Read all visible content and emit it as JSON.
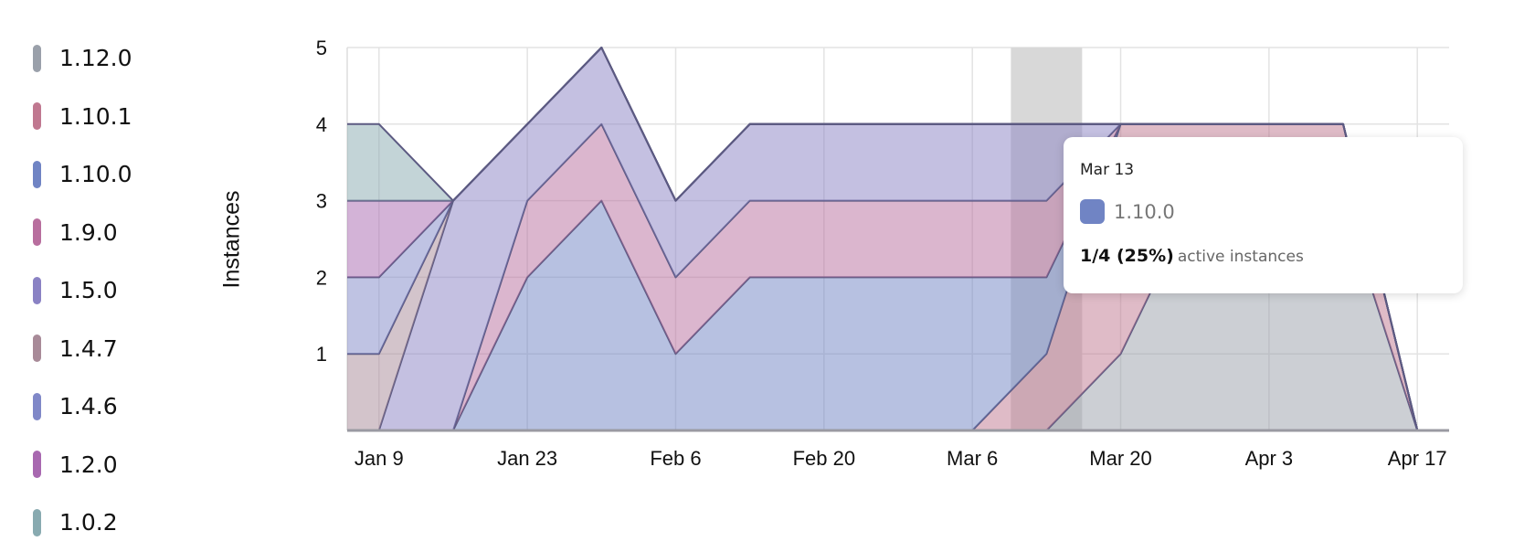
{
  "chart_data": {
    "type": "area",
    "stacked": true,
    "ylabel": "Instances",
    "ylim": [
      0,
      5
    ],
    "yticks": [
      "1",
      "2",
      "3",
      "4",
      "5"
    ],
    "xticks": [
      "Jan 9",
      "Jan 23",
      "Feb 6",
      "Feb 20",
      "Mar 6",
      "Mar 20",
      "Apr 3",
      "Apr 17"
    ],
    "xlim": [
      "Jan 6",
      "Apr 20"
    ],
    "grid": true,
    "legend_position": "left",
    "x": [
      "Jan 6",
      "Jan 9",
      "Jan 16",
      "Jan 23",
      "Jan 30",
      "Feb 6",
      "Feb 13",
      "Feb 20",
      "Feb 27",
      "Mar 6",
      "Mar 13",
      "Mar 20",
      "Mar 27",
      "Apr 3",
      "Apr 10",
      "Apr 17",
      "Apr 20"
    ],
    "series": [
      {
        "name": "1.12.0",
        "color": "#9aa0aa",
        "values": [
          0,
          0,
          0,
          0,
          0,
          0,
          0,
          0,
          0,
          0,
          0,
          1,
          3,
          3,
          3,
          0,
          0
        ]
      },
      {
        "name": "1.10.1",
        "color": "#c07890",
        "values": [
          0,
          0,
          0,
          0,
          0,
          0,
          0,
          0,
          0,
          0,
          1,
          3,
          1,
          1,
          1,
          0,
          0
        ]
      },
      {
        "name": "1.10.0",
        "color": "#7084c4",
        "values": [
          0,
          0,
          0,
          2,
          3,
          1,
          2,
          2,
          2,
          2,
          1,
          0,
          0,
          0,
          0,
          0,
          0
        ]
      },
      {
        "name": "1.9.0",
        "color": "#b86e9e",
        "values": [
          0,
          0,
          0,
          1,
          1,
          1,
          1,
          1,
          1,
          1,
          1,
          0,
          0,
          0,
          0,
          0,
          0
        ]
      },
      {
        "name": "1.5.0",
        "color": "#8a82c4",
        "values": [
          0,
          0,
          3,
          1,
          1,
          1,
          1,
          1,
          1,
          1,
          1,
          0,
          0,
          0,
          0,
          0,
          0
        ]
      },
      {
        "name": "1.4.7",
        "color": "#a88a98",
        "values": [
          1,
          1,
          0,
          0,
          0,
          0,
          0,
          0,
          0,
          0,
          0,
          0,
          0,
          0,
          0,
          0,
          0
        ]
      },
      {
        "name": "1.4.6",
        "color": "#8088c8",
        "values": [
          1,
          1,
          0,
          0,
          0,
          0,
          0,
          0,
          0,
          0,
          0,
          0,
          0,
          0,
          0,
          0,
          0
        ]
      },
      {
        "name": "1.2.0",
        "color": "#a868b0",
        "values": [
          1,
          1,
          0,
          0,
          0,
          0,
          0,
          0,
          0,
          0,
          0,
          0,
          0,
          0,
          0,
          0,
          0
        ]
      },
      {
        "name": "1.0.2",
        "color": "#88aab0",
        "values": [
          1,
          1,
          0,
          0,
          0,
          0,
          0,
          0,
          0,
          0,
          0,
          0,
          0,
          0,
          0,
          0,
          0
        ]
      }
    ],
    "highlight": "Mar 13"
  },
  "legend": [
    "1.12.0",
    "1.10.1",
    "1.10.0",
    "1.9.0",
    "1.5.0",
    "1.4.7",
    "1.4.6",
    "1.2.0",
    "1.0.2"
  ],
  "tooltip": {
    "date": "Mar 13",
    "series": "1.10.0",
    "color": "#7084c4",
    "value": "1/4 (25%)",
    "suffix": "active instances"
  }
}
